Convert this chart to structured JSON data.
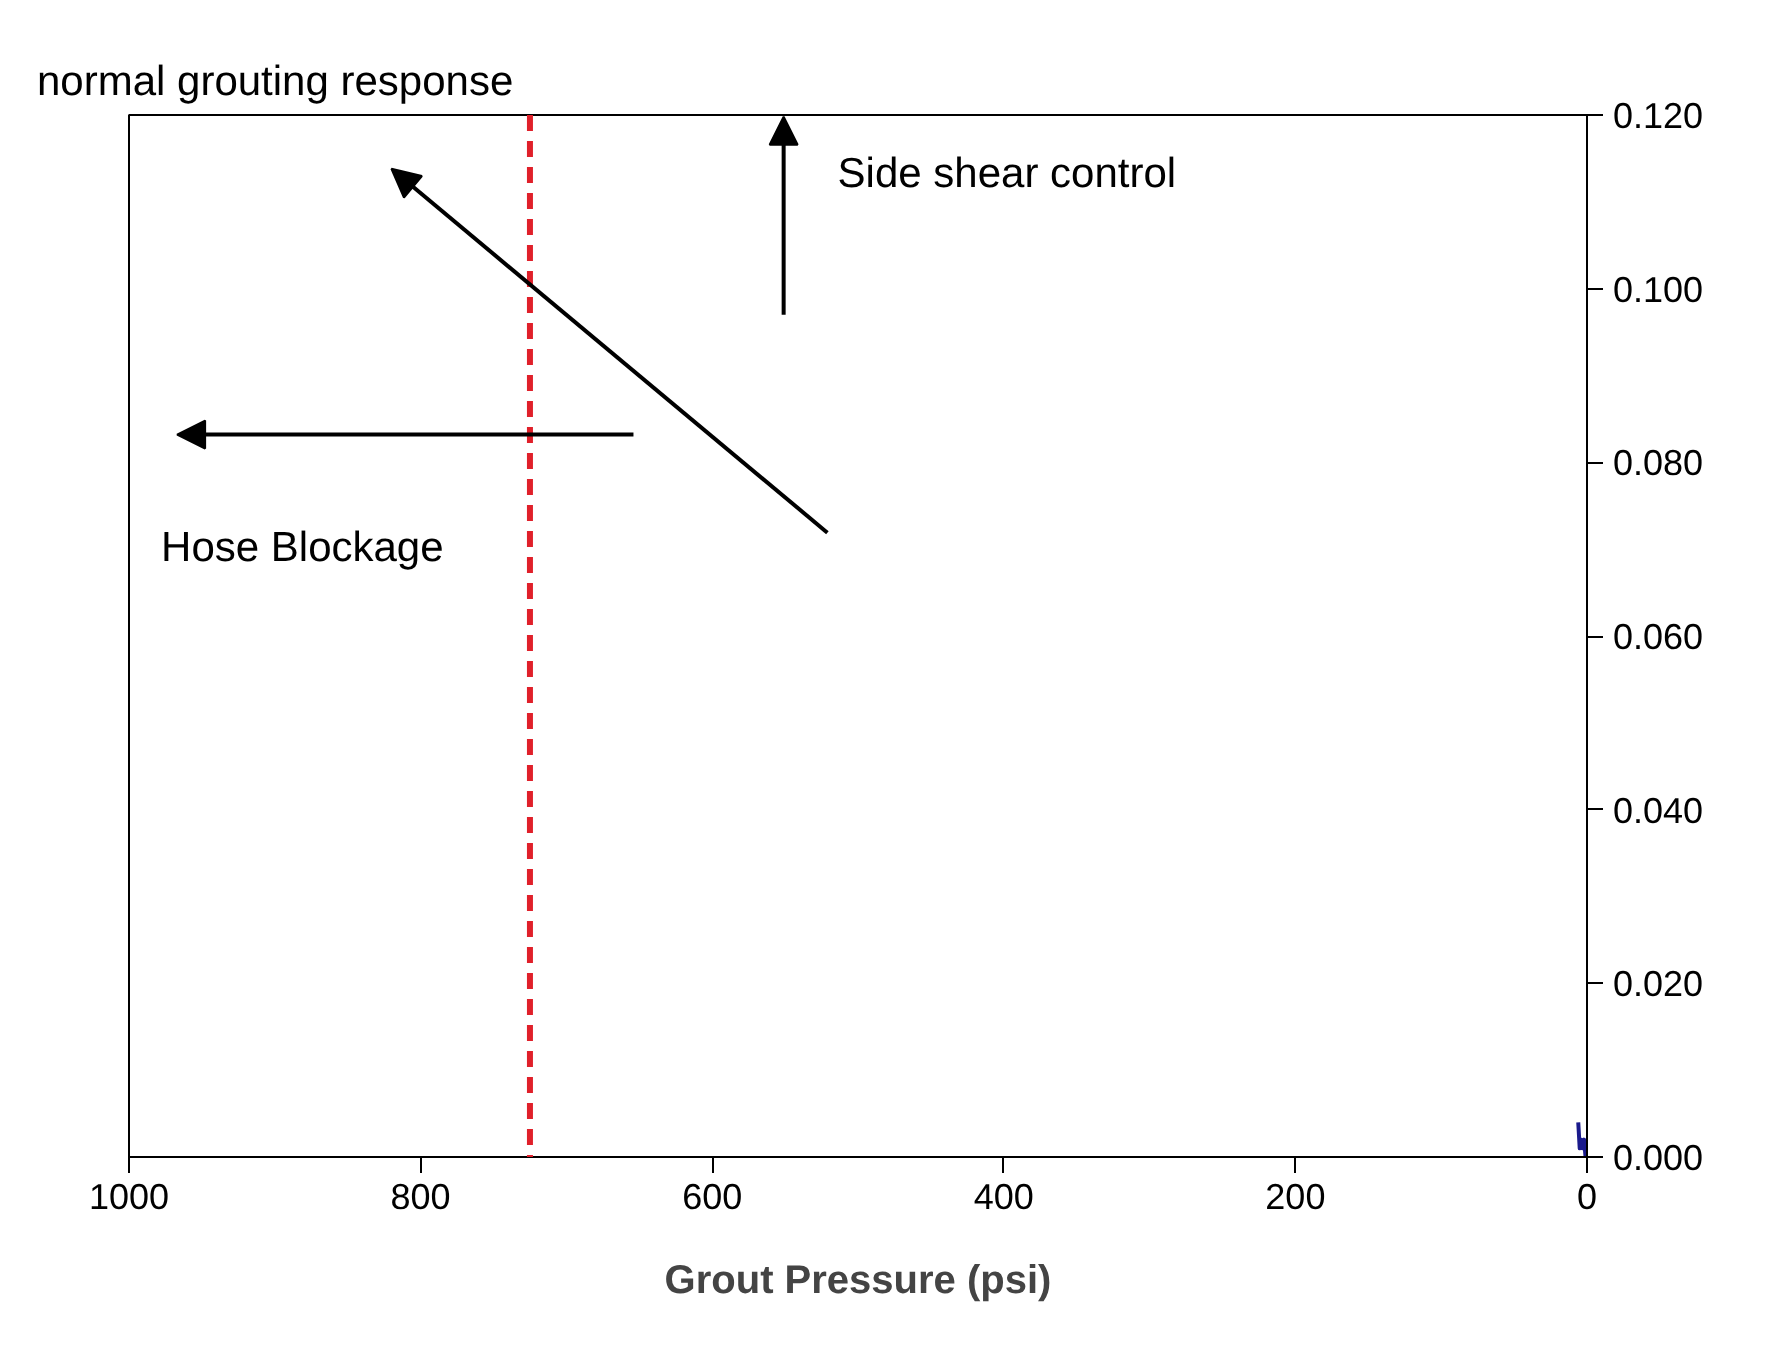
{
  "chart_data": {
    "type": "line",
    "xlabel": "Grout Pressure (psi)",
    "xlim": [
      1000,
      0
    ],
    "xticks": [
      1000,
      800,
      600,
      400,
      200,
      0
    ],
    "ylim": [
      0,
      0.12
    ],
    "yticks": [
      {
        "value": 0,
        "label": "0.000"
      },
      {
        "value": 0.02,
        "label": "0.020"
      },
      {
        "value": 0.04,
        "label": "0.040"
      },
      {
        "value": 0.06,
        "label": "0.060"
      },
      {
        "value": 0.08,
        "label": "0.080"
      },
      {
        "value": 0.1,
        "label": "0.100"
      },
      {
        "value": 0.12,
        "label": "0.120"
      }
    ],
    "series": [
      {
        "color": "#1a1a8c",
        "x": [
          6,
          5,
          4,
          3,
          2,
          1,
          0
        ],
        "values": [
          0.004,
          0.001,
          0.002,
          0.001,
          0.002,
          0.0,
          0.001
        ]
      }
    ],
    "ref_lines": [
      {
        "axis": "x",
        "value": 725,
        "color": "#e0202a",
        "line_style": "dashed"
      }
    ],
    "annotations": [
      "normal grouting response",
      "Side shear control",
      "Hose Blockage"
    ],
    "grid": false
  }
}
